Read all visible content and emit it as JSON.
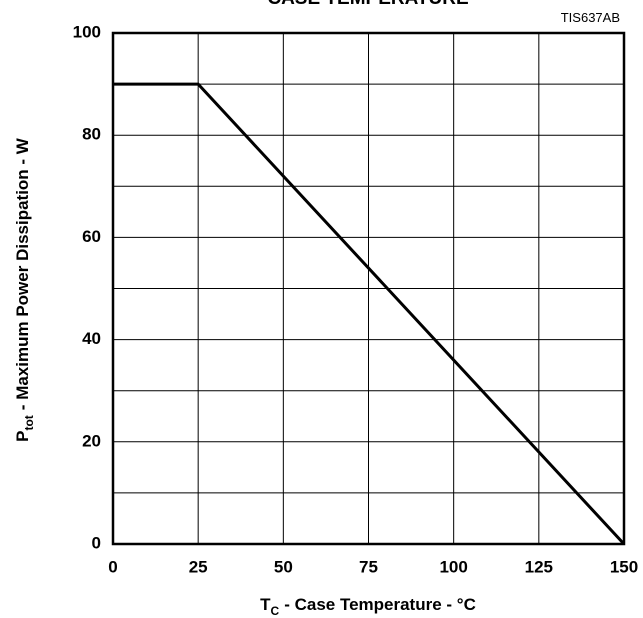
{
  "chart_data": {
    "type": "line",
    "title": "CASE TEMPERATURE",
    "annotation": "TIS637AB",
    "xlabel": {
      "symbol": "T",
      "subscript": "C",
      "text": "- Case Temperature - °C"
    },
    "ylabel": {
      "symbol": "P",
      "subscript": "tot",
      "text": "- Maximum Power Dissipation - W"
    },
    "x": [
      0,
      25,
      150
    ],
    "series": [
      {
        "color": "#000000",
        "values": [
          90,
          90,
          0
        ]
      }
    ],
    "xlim": [
      0,
      150
    ],
    "xticks": [
      0,
      25,
      50,
      75,
      100,
      125,
      150
    ],
    "ylim": [
      0,
      100
    ],
    "yticks": [
      0,
      20,
      40,
      60,
      80,
      100
    ],
    "yminor": [
      10,
      30,
      50,
      70,
      90
    ],
    "grid": true
  }
}
